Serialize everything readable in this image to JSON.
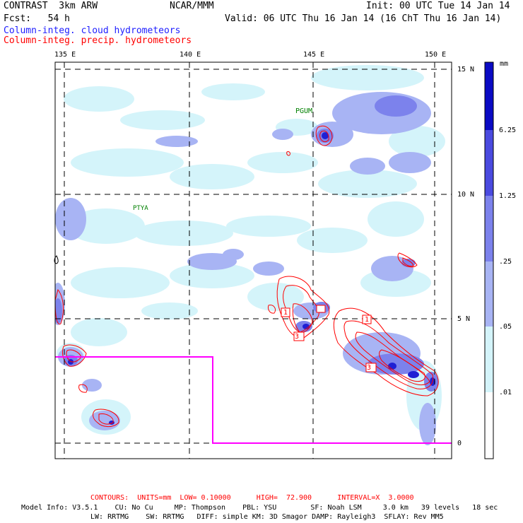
{
  "header": {
    "model": "CONTRAST  3km ARW",
    "center": "NCAR/MMM",
    "init": "Init: 00 UTC Tue 14 Jan 14",
    "fcst": "Fcst:   54 h",
    "valid": "Valid: 06 UTC Thu 16 Jan 14 (16 ChT Thu 16 Jan 14)",
    "field_cloud": "Column-integ. cloud hydrometeors",
    "field_precip": "Column-integ. precip. hydrometeors"
  },
  "map": {
    "lon_labels": [
      "135 E",
      "140 E",
      "145 E",
      "150 E"
    ],
    "lat_labels": [
      "15 N",
      "10 N",
      "5 N",
      "0"
    ],
    "stations": [
      "PGUM",
      "PTYA"
    ],
    "contour_labels": [
      "1",
      "3",
      "1",
      "3"
    ]
  },
  "colorbar": {
    "unit": "mm",
    "levels": [
      ".01",
      ".05",
      ".25",
      "1.25",
      "6.25"
    ],
    "colors": [
      "#d4f4fa",
      "#a8b4f4",
      "#7c82ec",
      "#4a4ae0",
      "#2020d4",
      "#0a0ac4"
    ]
  },
  "footer": {
    "contours": "CONTOURS:  UNITS=mm  LOW= 0.10000      HIGH=  72.900      INTERVAL=X  3.0000",
    "model_info_1": "Model Info: V3.5.1    CU: No Cu     MP: Thompson    PBL: YSU        SF: Noah LSM     3.0 km   39 levels   18 sec",
    "model_info_2": "LW: RRTMG    SW: RRTMG   DIFF: simple KM: 3D Smagor DAMP: Rayleigh3  SFLAY: Rev MM5"
  }
}
